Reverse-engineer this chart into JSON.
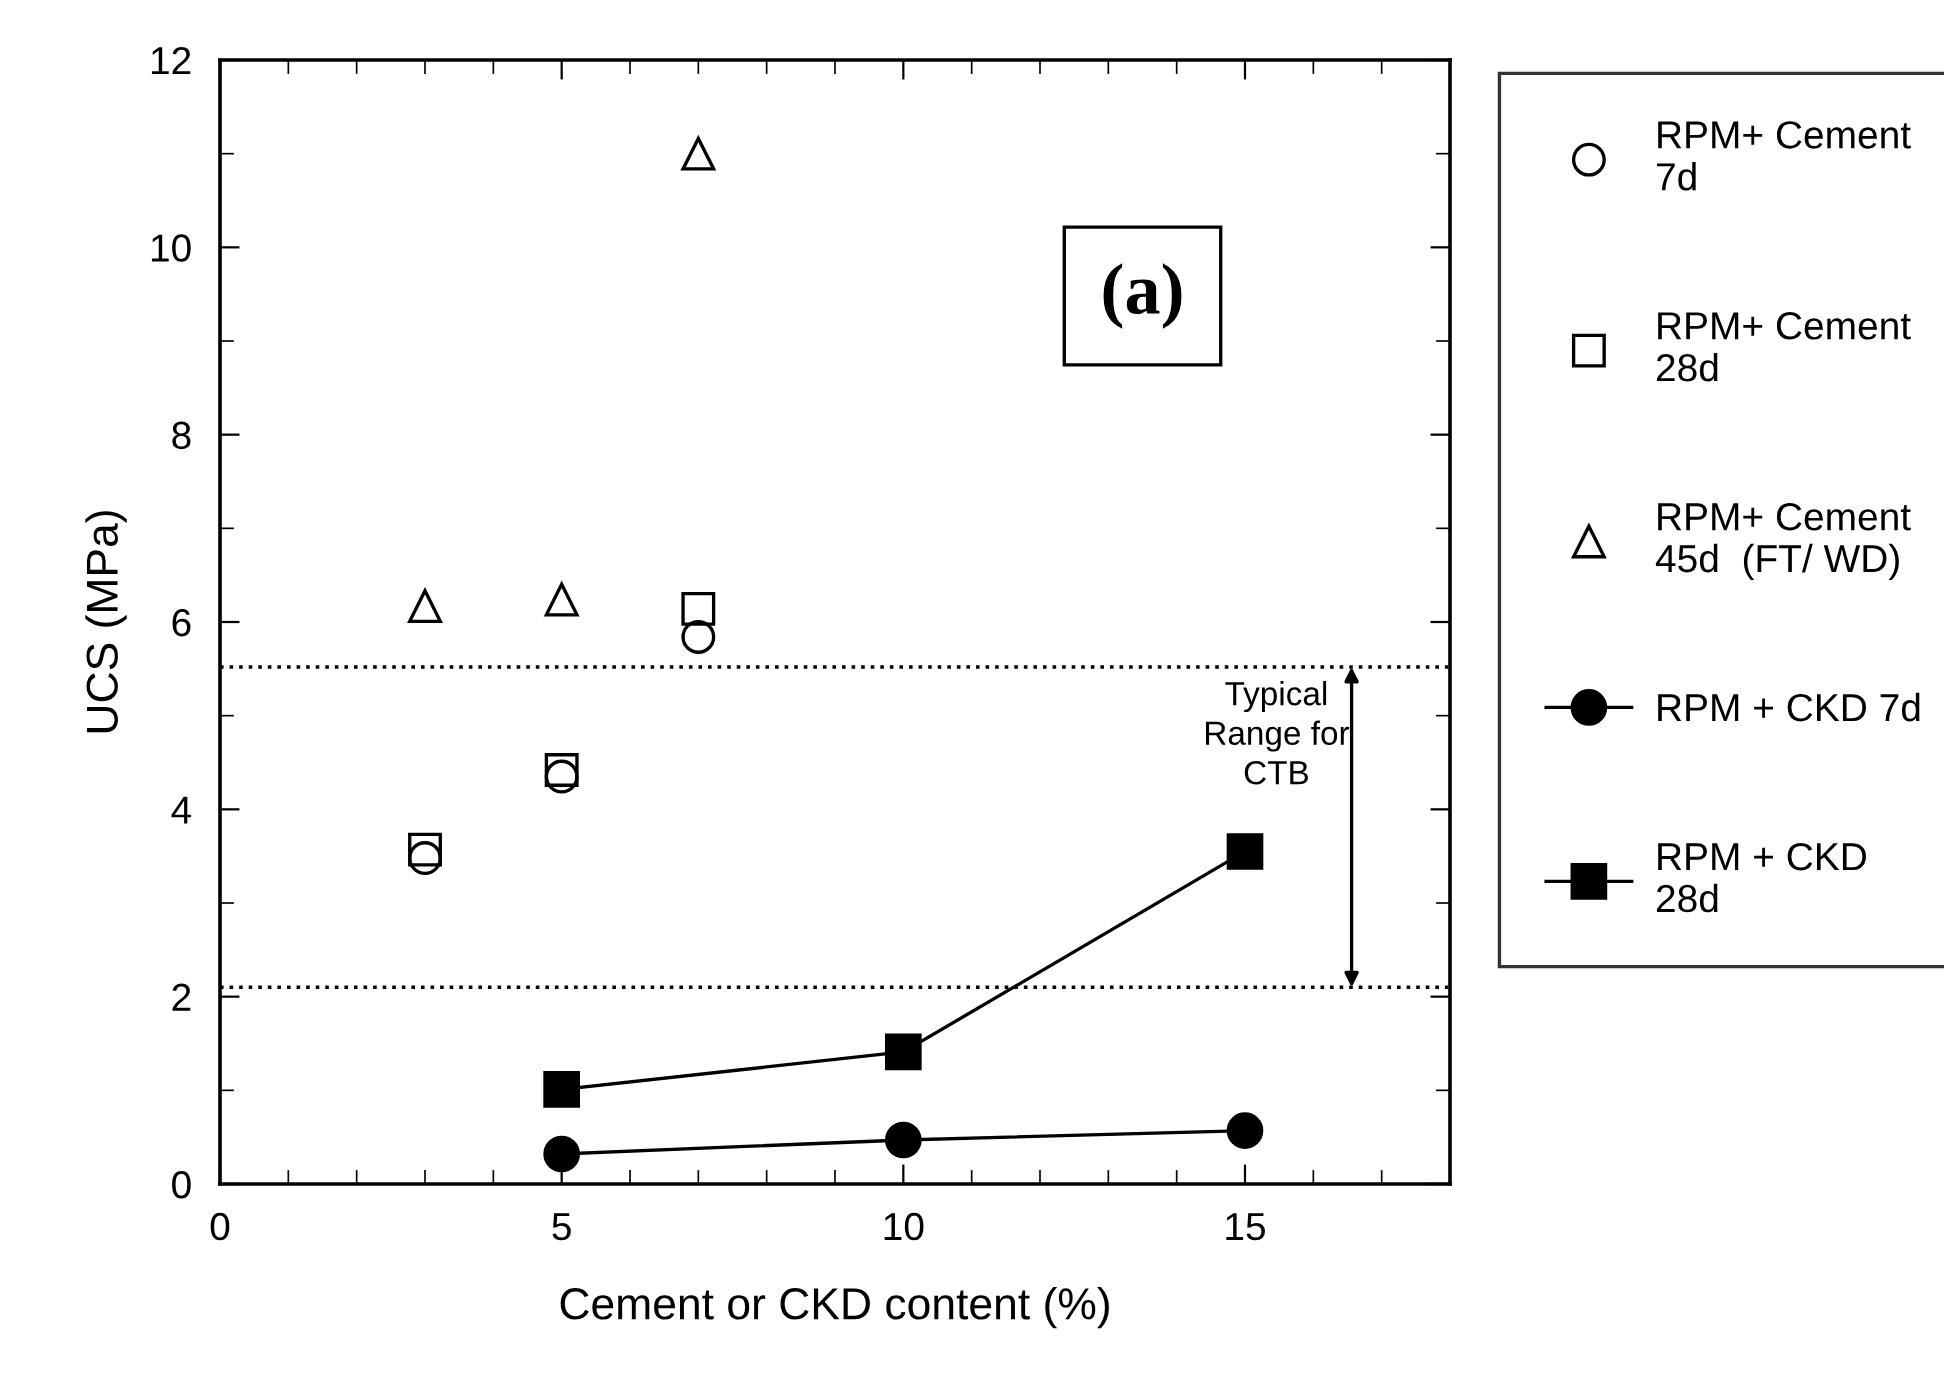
{
  "chart_data": {
    "type": "scatter",
    "xlabel": "Cement or CKD content (%)",
    "ylabel": "UCS (MPa)",
    "xlim": [
      0,
      18
    ],
    "xticks": [
      0,
      5,
      10,
      15
    ],
    "ylim": [
      0,
      12
    ],
    "yticks": [
      0,
      2,
      4,
      6,
      8,
      10,
      12
    ],
    "grid": false,
    "legend": "right",
    "series": [
      {
        "name": "RPM+ Cement\n7d",
        "marker": "circle",
        "color": "#000000",
        "x": [
          3,
          5,
          7
        ],
        "values": [
          3.48,
          4.35,
          5.84
        ]
      },
      {
        "name": "RPM+ Cement\n28d",
        "marker": "square",
        "color": "#000000",
        "x": [
          3,
          5,
          7
        ],
        "values": [
          3.57,
          4.42,
          6.14
        ]
      },
      {
        "name": "RPM+ Cement\n45d  (FT/ WD)",
        "marker": "triangle",
        "color": "#000000",
        "x": [
          3,
          5,
          7
        ],
        "values": [
          6.17,
          6.24,
          11.0
        ]
      },
      {
        "name": "RPM + CKD 7d",
        "type": "line",
        "marker": "circle",
        "color": "#000000",
        "x": [
          5,
          10,
          15
        ],
        "values": [
          0.32,
          0.47,
          0.57
        ]
      },
      {
        "name": "RPM + CKD\n28d",
        "type": "line",
        "marker": "square",
        "color": "#000000",
        "x": [
          5,
          10,
          15
        ],
        "values": [
          1.01,
          1.41,
          3.55
        ]
      }
    ],
    "ref_lines": [
      {
        "axis": "y",
        "value": 5.52,
        "line_style": "dotted",
        "color": "#000000"
      },
      {
        "axis": "y",
        "value": 2.1,
        "line_style": "dotted",
        "color": "#000000"
      }
    ],
    "annotations": [
      "(a)",
      "Typical\nRange for\nCTB"
    ]
  }
}
